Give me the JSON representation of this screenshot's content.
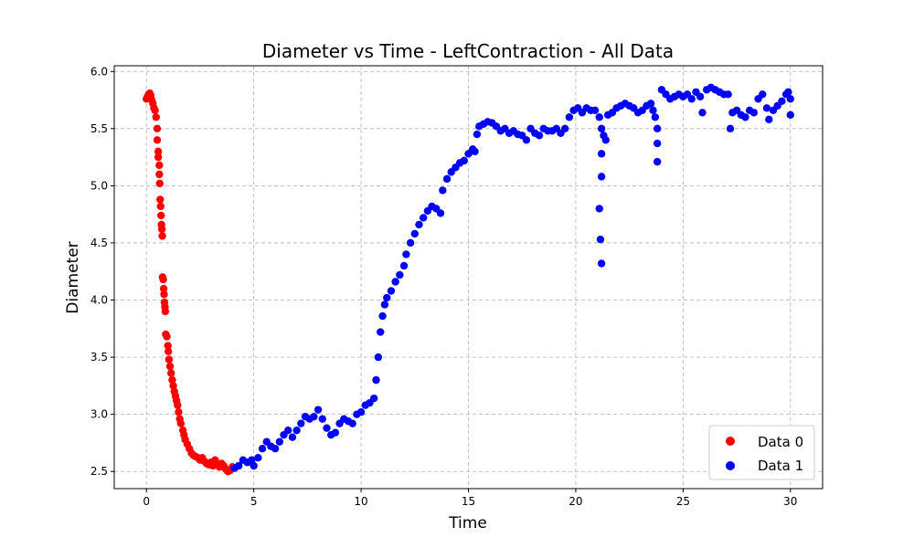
{
  "chart_data": {
    "type": "scatter",
    "title": "Diameter vs Time - LeftContraction - All Data",
    "xlabel": "Time",
    "ylabel": "Diameter",
    "xlim": [
      -1.5,
      31.5
    ],
    "ylim": [
      2.35,
      6.05
    ],
    "xticks": [
      0,
      5,
      10,
      15,
      20,
      25,
      30
    ],
    "yticks": [
      2.5,
      3.0,
      3.5,
      4.0,
      4.5,
      5.0,
      5.5,
      6.0
    ],
    "xtick_labels": [
      "0",
      "5",
      "10",
      "15",
      "20",
      "25",
      "30"
    ],
    "ytick_labels": [
      "2.5",
      "3.0",
      "3.5",
      "4.0",
      "4.5",
      "5.0",
      "5.5",
      "6.0"
    ],
    "grid": true,
    "legend_position": "lower-right",
    "series": [
      {
        "name": "Data 0",
        "color": "#ff0000",
        "points": [
          [
            0.0,
            5.76
          ],
          [
            0.05,
            5.78
          ],
          [
            0.1,
            5.8
          ],
          [
            0.15,
            5.81
          ],
          [
            0.2,
            5.79
          ],
          [
            0.25,
            5.75
          ],
          [
            0.3,
            5.72
          ],
          [
            0.35,
            5.68
          ],
          [
            0.4,
            5.66
          ],
          [
            0.45,
            5.6
          ],
          [
            0.5,
            5.5
          ],
          [
            0.5,
            5.4
          ],
          [
            0.55,
            5.3
          ],
          [
            0.55,
            5.25
          ],
          [
            0.6,
            5.18
          ],
          [
            0.6,
            5.1
          ],
          [
            0.62,
            5.02
          ],
          [
            0.64,
            4.88
          ],
          [
            0.66,
            4.82
          ],
          [
            0.68,
            4.74
          ],
          [
            0.7,
            4.66
          ],
          [
            0.72,
            4.62
          ],
          [
            0.74,
            4.56
          ],
          [
            0.75,
            4.2
          ],
          [
            0.78,
            4.18
          ],
          [
            0.8,
            4.1
          ],
          [
            0.82,
            4.05
          ],
          [
            0.84,
            3.98
          ],
          [
            0.86,
            3.94
          ],
          [
            0.88,
            3.9
          ],
          [
            0.9,
            3.7
          ],
          [
            0.95,
            3.68
          ],
          [
            1.0,
            3.6
          ],
          [
            1.02,
            3.55
          ],
          [
            1.05,
            3.48
          ],
          [
            1.1,
            3.42
          ],
          [
            1.15,
            3.36
          ],
          [
            1.2,
            3.3
          ],
          [
            1.25,
            3.25
          ],
          [
            1.3,
            3.2
          ],
          [
            1.35,
            3.16
          ],
          [
            1.4,
            3.12
          ],
          [
            1.45,
            3.08
          ],
          [
            1.5,
            3.02
          ],
          [
            1.55,
            2.96
          ],
          [
            1.6,
            2.92
          ],
          [
            1.7,
            2.86
          ],
          [
            1.75,
            2.82
          ],
          [
            1.8,
            2.78
          ],
          [
            1.9,
            2.74
          ],
          [
            2.0,
            2.7
          ],
          [
            2.1,
            2.66
          ],
          [
            2.2,
            2.64
          ],
          [
            2.3,
            2.63
          ],
          [
            2.4,
            2.62
          ],
          [
            2.5,
            2.6
          ],
          [
            2.6,
            2.62
          ],
          [
            2.7,
            2.59
          ],
          [
            2.8,
            2.57
          ],
          [
            2.9,
            2.56
          ],
          [
            3.0,
            2.58
          ],
          [
            3.1,
            2.55
          ],
          [
            3.2,
            2.6
          ],
          [
            3.3,
            2.56
          ],
          [
            3.4,
            2.54
          ],
          [
            3.5,
            2.57
          ],
          [
            3.6,
            2.55
          ],
          [
            3.7,
            2.52
          ],
          [
            3.8,
            2.5
          ],
          [
            3.9,
            2.51
          ],
          [
            4.0,
            2.54
          ],
          [
            4.1,
            2.53
          ]
        ]
      },
      {
        "name": "Data 1",
        "color": "#0000ff",
        "points": [
          [
            4.1,
            2.53
          ],
          [
            4.3,
            2.55
          ],
          [
            4.5,
            2.6
          ],
          [
            4.7,
            2.58
          ],
          [
            4.9,
            2.6
          ],
          [
            5.0,
            2.55
          ],
          [
            5.2,
            2.62
          ],
          [
            5.4,
            2.7
          ],
          [
            5.6,
            2.76
          ],
          [
            5.8,
            2.72
          ],
          [
            6.0,
            2.7
          ],
          [
            6.2,
            2.76
          ],
          [
            6.4,
            2.82
          ],
          [
            6.6,
            2.86
          ],
          [
            6.8,
            2.8
          ],
          [
            7.0,
            2.86
          ],
          [
            7.2,
            2.92
          ],
          [
            7.4,
            2.98
          ],
          [
            7.6,
            2.96
          ],
          [
            7.8,
            2.98
          ],
          [
            8.0,
            3.04
          ],
          [
            8.2,
            2.96
          ],
          [
            8.4,
            2.88
          ],
          [
            8.6,
            2.82
          ],
          [
            8.8,
            2.84
          ],
          [
            9.0,
            2.92
          ],
          [
            9.2,
            2.96
          ],
          [
            9.4,
            2.94
          ],
          [
            9.6,
            2.92
          ],
          [
            9.8,
            3.0
          ],
          [
            10.0,
            3.02
          ],
          [
            10.2,
            3.08
          ],
          [
            10.4,
            3.1
          ],
          [
            10.6,
            3.14
          ],
          [
            10.7,
            3.3
          ],
          [
            10.8,
            3.5
          ],
          [
            10.9,
            3.72
          ],
          [
            11.0,
            3.86
          ],
          [
            11.1,
            3.96
          ],
          [
            11.2,
            4.02
          ],
          [
            11.4,
            4.08
          ],
          [
            11.6,
            4.16
          ],
          [
            11.8,
            4.22
          ],
          [
            12.0,
            4.3
          ],
          [
            12.1,
            4.4
          ],
          [
            12.3,
            4.5
          ],
          [
            12.5,
            4.58
          ],
          [
            12.7,
            4.66
          ],
          [
            12.9,
            4.72
          ],
          [
            13.1,
            4.78
          ],
          [
            13.3,
            4.82
          ],
          [
            13.5,
            4.8
          ],
          [
            13.7,
            4.76
          ],
          [
            13.8,
            4.96
          ],
          [
            14.0,
            5.06
          ],
          [
            14.2,
            5.12
          ],
          [
            14.4,
            5.16
          ],
          [
            14.6,
            5.2
          ],
          [
            14.8,
            5.22
          ],
          [
            15.0,
            5.28
          ],
          [
            15.2,
            5.32
          ],
          [
            15.3,
            5.3
          ],
          [
            15.4,
            5.45
          ],
          [
            15.5,
            5.52
          ],
          [
            15.7,
            5.54
          ],
          [
            15.9,
            5.56
          ],
          [
            16.1,
            5.55
          ],
          [
            16.3,
            5.52
          ],
          [
            16.5,
            5.48
          ],
          [
            16.7,
            5.5
          ],
          [
            16.9,
            5.46
          ],
          [
            17.1,
            5.48
          ],
          [
            17.3,
            5.45
          ],
          [
            17.5,
            5.44
          ],
          [
            17.7,
            5.4
          ],
          [
            17.9,
            5.5
          ],
          [
            18.1,
            5.46
          ],
          [
            18.3,
            5.44
          ],
          [
            18.5,
            5.5
          ],
          [
            18.7,
            5.48
          ],
          [
            18.9,
            5.48
          ],
          [
            19.1,
            5.5
          ],
          [
            19.3,
            5.46
          ],
          [
            19.5,
            5.5
          ],
          [
            19.7,
            5.6
          ],
          [
            19.9,
            5.66
          ],
          [
            20.1,
            5.68
          ],
          [
            20.3,
            5.64
          ],
          [
            20.5,
            5.68
          ],
          [
            20.7,
            5.66
          ],
          [
            20.9,
            5.66
          ],
          [
            21.1,
            5.6
          ],
          [
            21.2,
            5.5
          ],
          [
            21.2,
            5.28
          ],
          [
            21.2,
            5.08
          ],
          [
            21.1,
            4.8
          ],
          [
            21.15,
            4.53
          ],
          [
            21.2,
            4.32
          ],
          [
            21.3,
            5.44
          ],
          [
            21.4,
            5.4
          ],
          [
            21.5,
            5.62
          ],
          [
            21.7,
            5.64
          ],
          [
            21.9,
            5.68
          ],
          [
            22.1,
            5.7
          ],
          [
            22.3,
            5.72
          ],
          [
            22.5,
            5.7
          ],
          [
            22.7,
            5.68
          ],
          [
            22.9,
            5.64
          ],
          [
            23.1,
            5.66
          ],
          [
            23.3,
            5.7
          ],
          [
            23.5,
            5.72
          ],
          [
            23.6,
            5.66
          ],
          [
            23.7,
            5.6
          ],
          [
            23.8,
            5.5
          ],
          [
            23.8,
            5.37
          ],
          [
            23.8,
            5.21
          ],
          [
            24.0,
            5.84
          ],
          [
            24.2,
            5.8
          ],
          [
            24.4,
            5.76
          ],
          [
            24.6,
            5.78
          ],
          [
            24.8,
            5.8
          ],
          [
            25.0,
            5.78
          ],
          [
            25.2,
            5.8
          ],
          [
            25.4,
            5.76
          ],
          [
            25.6,
            5.82
          ],
          [
            25.8,
            5.78
          ],
          [
            25.9,
            5.64
          ],
          [
            26.1,
            5.84
          ],
          [
            26.3,
            5.86
          ],
          [
            26.5,
            5.84
          ],
          [
            26.7,
            5.82
          ],
          [
            26.9,
            5.8
          ],
          [
            27.1,
            5.8
          ],
          [
            27.2,
            5.5
          ],
          [
            27.3,
            5.64
          ],
          [
            27.5,
            5.66
          ],
          [
            27.7,
            5.62
          ],
          [
            27.9,
            5.6
          ],
          [
            28.1,
            5.66
          ],
          [
            28.3,
            5.64
          ],
          [
            28.5,
            5.76
          ],
          [
            28.7,
            5.8
          ],
          [
            28.9,
            5.68
          ],
          [
            29.0,
            5.58
          ],
          [
            29.2,
            5.66
          ],
          [
            29.4,
            5.7
          ],
          [
            29.6,
            5.74
          ],
          [
            29.8,
            5.8
          ],
          [
            29.9,
            5.82
          ],
          [
            30.0,
            5.62
          ],
          [
            30.0,
            5.76
          ]
        ]
      }
    ]
  }
}
